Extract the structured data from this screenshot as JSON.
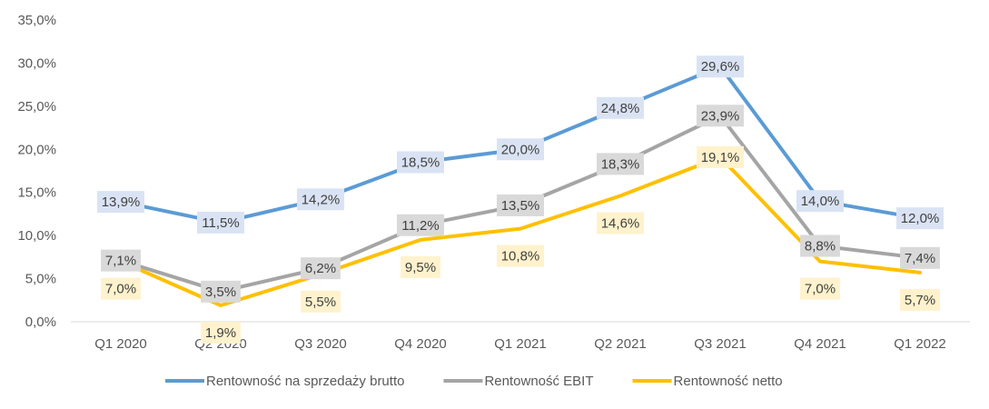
{
  "chart_data": {
    "type": "line",
    "title": "",
    "xlabel": "",
    "ylabel": "",
    "categories": [
      "Q1 2020",
      "Q2 2020",
      "Q3 2020",
      "Q4 2020",
      "Q1 2021",
      "Q2 2021",
      "Q3 2021",
      "Q4 2021",
      "Q1 2022"
    ],
    "y_ticks": [
      "0,0%",
      "5,0%",
      "10,0%",
      "15,0%",
      "20,0%",
      "25,0%",
      "30,0%",
      "35,0%"
    ],
    "ylim": [
      0,
      35
    ],
    "grid": false,
    "legend_position": "bottom",
    "series": [
      {
        "name": "Rentowność na sprzedaży brutto",
        "color": "#5b9bd5",
        "label_bg": "#dae3f3",
        "values": [
          13.9,
          11.5,
          14.2,
          18.5,
          20.0,
          24.8,
          29.6,
          14.0,
          12.0
        ],
        "labels": [
          "13,9%",
          "11,5%",
          "14,2%",
          "18,5%",
          "20,0%",
          "24,8%",
          "29,6%",
          "14,0%",
          "12,0%"
        ],
        "label_side": [
          "on",
          "on",
          "on",
          "on",
          "on",
          "on",
          "on",
          "on",
          "on"
        ]
      },
      {
        "name": "Rentowność EBIT",
        "color": "#a5a5a5",
        "label_bg": "#d9d9d9",
        "values": [
          7.1,
          3.5,
          6.2,
          11.2,
          13.5,
          18.3,
          23.9,
          8.8,
          7.4
        ],
        "labels": [
          "7,1%",
          "3,5%",
          "6,2%",
          "11,2%",
          "13,5%",
          "18,3%",
          "23,9%",
          "8,8%",
          "7,4%"
        ],
        "label_side": [
          "on",
          "on",
          "on",
          "on",
          "on",
          "on",
          "on",
          "on",
          "on"
        ]
      },
      {
        "name": "Rentowność netto",
        "color": "#ffc000",
        "label_bg": "#fff2cc",
        "values": [
          7.0,
          1.9,
          5.5,
          9.5,
          10.8,
          14.6,
          19.1,
          7.0,
          5.7
        ],
        "labels": [
          "7,0%",
          "1,9%",
          "5,5%",
          "9,5%",
          "10,8%",
          "14,6%",
          "19,1%",
          "7,0%",
          "5,7%"
        ],
        "label_side": [
          "below",
          "below",
          "below",
          "below",
          "below",
          "below",
          "on",
          "below",
          "below"
        ]
      }
    ]
  }
}
